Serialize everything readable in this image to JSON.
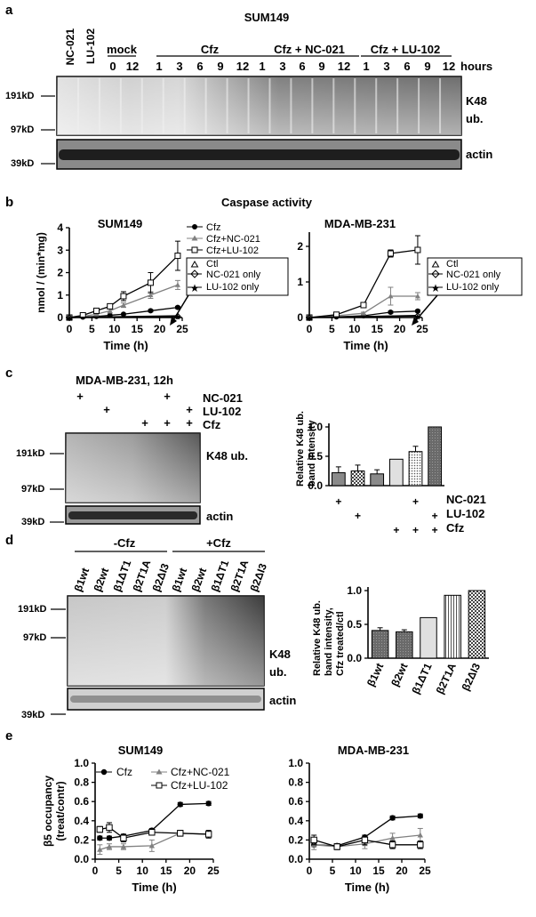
{
  "a": {
    "letter": "a",
    "cell_line": "SUM149",
    "lanes_single": [
      "NC-021",
      "LU-102"
    ],
    "groups": [
      "mock",
      "Cfz",
      "Cfz + NC-021",
      "Cfz + LU-102"
    ],
    "mock_times": [
      "0",
      "12"
    ],
    "times": [
      "1",
      "3",
      "6",
      "9",
      "12"
    ],
    "hours_label": "hours",
    "mw_markers": [
      "191kD",
      "97kD",
      "39kD"
    ],
    "k48_label_1": "K48",
    "k48_label_2": "ub.",
    "actin_label": "actin"
  },
  "b": {
    "letter": "b",
    "title": "Caspase activity",
    "left_chart_title": "SUM149",
    "right_chart_title": "MDA-MB-231",
    "legend_left": [
      "Cfz",
      "Cfz+NC-021",
      "Cfz+LU-102"
    ],
    "legend_right": [
      "Ctl",
      "NC-021 only",
      "LU-102 only"
    ]
  },
  "c": {
    "letter": "c",
    "title": "MDA-MB-231, 12h",
    "treatments": [
      "NC-021",
      "LU-102",
      "Cfz"
    ],
    "plus": "+",
    "mw_markers": [
      "191kD",
      "97kD",
      "39kD"
    ],
    "k48_label": "K48 ub.",
    "actin_label": "actin",
    "bar_ylabel_1": "Relative K48 ub.",
    "bar_ylabel_2": "band intensity"
  },
  "d": {
    "letter": "d",
    "minus_cfz": "-Cfz",
    "plus_cfz": "+Cfz",
    "lanes": [
      "β1wt",
      "β2wt",
      "β1ΔT1",
      "β2T1A",
      "β2ΔI3",
      "β1wt",
      "β2wt",
      "β1ΔT1",
      "β2T1A",
      "β2ΔI3"
    ],
    "mw_markers": [
      "191kD",
      "97kD",
      "39kD"
    ],
    "k48_label_1": "K48",
    "k48_label_2": "ub.",
    "actin_label": "actin",
    "bar_ylabel_1": "Relative K48 ub.",
    "bar_ylabel_2": "band intensity,",
    "bar_ylabel_3": "Cfz treated/ctl"
  },
  "e": {
    "letter": "e",
    "left_chart_title": "SUM149",
    "right_chart_title": "MDA-MB-231",
    "legend": [
      "Cfz",
      "Cfz+NC-021",
      "Cfz+LU-102"
    ]
  },
  "colors": {
    "black": "#000000",
    "gray": "#808080",
    "blot_dark": "#2a2a2a",
    "blot_light": "#d8d8d8"
  },
  "chart_data": [
    {
      "type": "line",
      "panel": "b-left",
      "title": "SUM149",
      "xlabel": "Time (h)",
      "ylabel": "nmol / (min*mg)",
      "xlim": [
        0,
        25
      ],
      "ylim": [
        0,
        4
      ],
      "xticks": [
        "0",
        "5",
        "10",
        "15",
        "20",
        "25"
      ],
      "yticks": [
        "0",
        "1",
        "2",
        "3",
        "4"
      ],
      "series": [
        {
          "name": "Cfz",
          "marker": "filled-circle",
          "color": "#000000",
          "x": [
            0,
            3,
            6,
            9,
            12,
            18,
            24
          ],
          "y": [
            0,
            0.02,
            0.05,
            0.1,
            0.15,
            0.3,
            0.45
          ],
          "err": [
            0,
            0,
            0,
            0,
            0,
            0.05,
            0.05
          ]
        },
        {
          "name": "Cfz+NC-021",
          "marker": "filled-triangle",
          "color": "#808080",
          "x": [
            0,
            3,
            6,
            9,
            12,
            18,
            24
          ],
          "y": [
            0,
            0.05,
            0.15,
            0.3,
            0.55,
            1.0,
            1.45
          ],
          "err": [
            0,
            0,
            0.05,
            0.1,
            0.1,
            0.15,
            0.2
          ]
        },
        {
          "name": "Cfz+LU-102",
          "marker": "open-square",
          "color": "#000000",
          "x": [
            0,
            3,
            6,
            9,
            12,
            18,
            24
          ],
          "y": [
            0,
            0.1,
            0.3,
            0.5,
            0.95,
            1.55,
            2.75
          ],
          "err": [
            0,
            0,
            0.1,
            0.1,
            0.2,
            0.45,
            0.65
          ]
        },
        {
          "name": "Ctl",
          "marker": "open-triangle",
          "color": "#000000",
          "x": [
            0,
            24
          ],
          "y": [
            0,
            0.08
          ],
          "err": [
            0,
            0
          ]
        },
        {
          "name": "NC-021 only",
          "marker": "open-diamond",
          "color": "#000000",
          "x": [
            0,
            24
          ],
          "y": [
            0,
            0.06
          ],
          "err": [
            0,
            0
          ]
        },
        {
          "name": "LU-102 only",
          "marker": "star",
          "color": "#000000",
          "x": [
            0,
            24
          ],
          "y": [
            0,
            0.05
          ],
          "err": [
            0,
            0
          ]
        }
      ]
    },
    {
      "type": "line",
      "panel": "b-right",
      "title": "MDA-MB-231",
      "xlabel": "Time (h)",
      "ylabel": "",
      "xlim": [
        0,
        25
      ],
      "ylim": [
        0,
        2.4
      ],
      "xticks": [
        "0",
        "5",
        "10",
        "15",
        "20",
        "25"
      ],
      "yticks": [
        "0",
        "1",
        "2"
      ],
      "series": [
        {
          "name": "Cfz",
          "marker": "filled-circle",
          "color": "#000000",
          "x": [
            0,
            6,
            12,
            18,
            24
          ],
          "y": [
            0,
            0.02,
            0.05,
            0.15,
            0.18
          ],
          "err": [
            0,
            0,
            0,
            0.03,
            0.03
          ]
        },
        {
          "name": "Cfz+NC-021",
          "marker": "filled-triangle",
          "color": "#808080",
          "x": [
            0,
            6,
            12,
            18,
            24
          ],
          "y": [
            0,
            0.05,
            0.12,
            0.6,
            0.6
          ],
          "err": [
            0,
            0,
            0.03,
            0.25,
            0.1
          ]
        },
        {
          "name": "Cfz+LU-102",
          "marker": "open-square",
          "color": "#000000",
          "x": [
            0,
            6,
            12,
            18,
            24
          ],
          "y": [
            0,
            0.08,
            0.35,
            1.8,
            1.9
          ],
          "err": [
            0,
            0,
            0.03,
            0.1,
            0.4
          ]
        },
        {
          "name": "Ctl",
          "marker": "open-triangle",
          "color": "#000000",
          "x": [
            0,
            24
          ],
          "y": [
            0,
            0.06
          ],
          "err": [
            0,
            0
          ]
        },
        {
          "name": "NC-021 only",
          "marker": "open-diamond",
          "color": "#000000",
          "x": [
            0,
            24
          ],
          "y": [
            0,
            0.05
          ],
          "err": [
            0,
            0
          ]
        },
        {
          "name": "LU-102 only",
          "marker": "star",
          "color": "#000000",
          "x": [
            0,
            24
          ],
          "y": [
            0,
            0.04
          ],
          "err": [
            0,
            0
          ]
        }
      ]
    },
    {
      "type": "bar",
      "panel": "c",
      "ylabel": "Relative K48 ub. band intensity",
      "ylim": [
        0,
        1.0
      ],
      "yticks": [
        "0.0",
        "0.5",
        "1.0"
      ],
      "categories": [
        "NC-021",
        "LU-102",
        "ctl",
        "Cfz",
        "Cfz+NC-021",
        "Cfz+LU-102"
      ],
      "values": [
        0.22,
        0.25,
        0.2,
        0.45,
        0.58,
        1.0
      ],
      "errors": [
        0.1,
        0.1,
        0.07,
        0,
        0.09,
        0
      ],
      "patterns": [
        "gray",
        "check",
        "gray",
        "light",
        "dots",
        "dark"
      ],
      "row_plus": [
        [
          true,
          false,
          false,
          false,
          true,
          false
        ],
        [
          false,
          true,
          false,
          false,
          false,
          true
        ],
        [
          false,
          false,
          false,
          true,
          true,
          true
        ]
      ]
    },
    {
      "type": "bar",
      "panel": "d",
      "ylabel": "Relative K48 ub. band intensity, Cfz treated/ctl",
      "ylim": [
        0,
        1.0
      ],
      "yticks": [
        "0.0",
        "0.5",
        "1.0"
      ],
      "categories": [
        "β1wt",
        "β2wt",
        "β1ΔT1",
        "β2T1A",
        "β2ΔI3"
      ],
      "values": [
        0.41,
        0.39,
        0.6,
        0.93,
        1.0
      ],
      "errors": [
        0.04,
        0.03,
        0,
        0,
        0
      ],
      "patterns": [
        "dark",
        "dark",
        "light",
        "lines",
        "check"
      ]
    },
    {
      "type": "line",
      "panel": "e-left",
      "title": "SUM149",
      "xlabel": "Time (h)",
      "ylabel": "β5 occupancy (treat/contr)",
      "xlim": [
        0,
        25
      ],
      "ylim": [
        0,
        1.0
      ],
      "xticks": [
        "0",
        "5",
        "10",
        "15",
        "20",
        "25"
      ],
      "yticks": [
        "0.0",
        "0.2",
        "0.4",
        "0.6",
        "0.8",
        "1.0"
      ],
      "series": [
        {
          "name": "Cfz",
          "marker": "filled-circle",
          "color": "#000000",
          "x": [
            1,
            3,
            6,
            12,
            18,
            24
          ],
          "y": [
            0.22,
            0.22,
            0.24,
            0.3,
            0.57,
            0.58
          ],
          "err": [
            0.02,
            0.02,
            0.02,
            0.02,
            0.02,
            0.02
          ]
        },
        {
          "name": "Cfz+NC-021",
          "marker": "filled-triangle",
          "color": "#808080",
          "x": [
            1,
            3,
            6,
            12,
            18,
            24
          ],
          "y": [
            0.1,
            0.13,
            0.13,
            0.14,
            0.27,
            0.26
          ],
          "err": [
            0.05,
            0.03,
            0.03,
            0.06,
            0.03,
            0.03
          ]
        },
        {
          "name": "Cfz+LU-102",
          "marker": "open-square",
          "color": "#000000",
          "x": [
            1,
            3,
            6,
            12,
            18,
            24
          ],
          "y": [
            0.31,
            0.33,
            0.22,
            0.28,
            0.27,
            0.26
          ],
          "err": [
            0.03,
            0.05,
            0.04,
            0.03,
            0.03,
            0.04
          ]
        }
      ]
    },
    {
      "type": "line",
      "panel": "e-right",
      "title": "MDA-MB-231",
      "xlabel": "Time (h)",
      "ylabel": "",
      "xlim": [
        0,
        25
      ],
      "ylim": [
        0,
        1.0
      ],
      "xticks": [
        "0",
        "5",
        "10",
        "15",
        "20",
        "25"
      ],
      "yticks": [
        "0.0",
        "0.2",
        "0.4",
        "0.6",
        "0.8",
        "1.0"
      ],
      "series": [
        {
          "name": "Cfz",
          "marker": "filled-circle",
          "color": "#000000",
          "x": [
            1,
            6,
            12,
            18,
            24
          ],
          "y": [
            0.15,
            0.14,
            0.23,
            0.43,
            0.45
          ],
          "err": [
            0.02,
            0.02,
            0.02,
            0.02,
            0.02
          ]
        },
        {
          "name": "Cfz+NC-021",
          "marker": "filled-triangle",
          "color": "#808080",
          "x": [
            1,
            6,
            12,
            18,
            24
          ],
          "y": [
            0.15,
            0.13,
            0.16,
            0.22,
            0.25
          ],
          "err": [
            0.05,
            0.03,
            0.05,
            0.05,
            0.07
          ]
        },
        {
          "name": "Cfz+LU-102",
          "marker": "open-square",
          "color": "#000000",
          "x": [
            1,
            6,
            12,
            18,
            24
          ],
          "y": [
            0.2,
            0.13,
            0.2,
            0.15,
            0.15
          ],
          "err": [
            0.05,
            0.03,
            0.05,
            0.04,
            0.04
          ]
        }
      ]
    }
  ]
}
